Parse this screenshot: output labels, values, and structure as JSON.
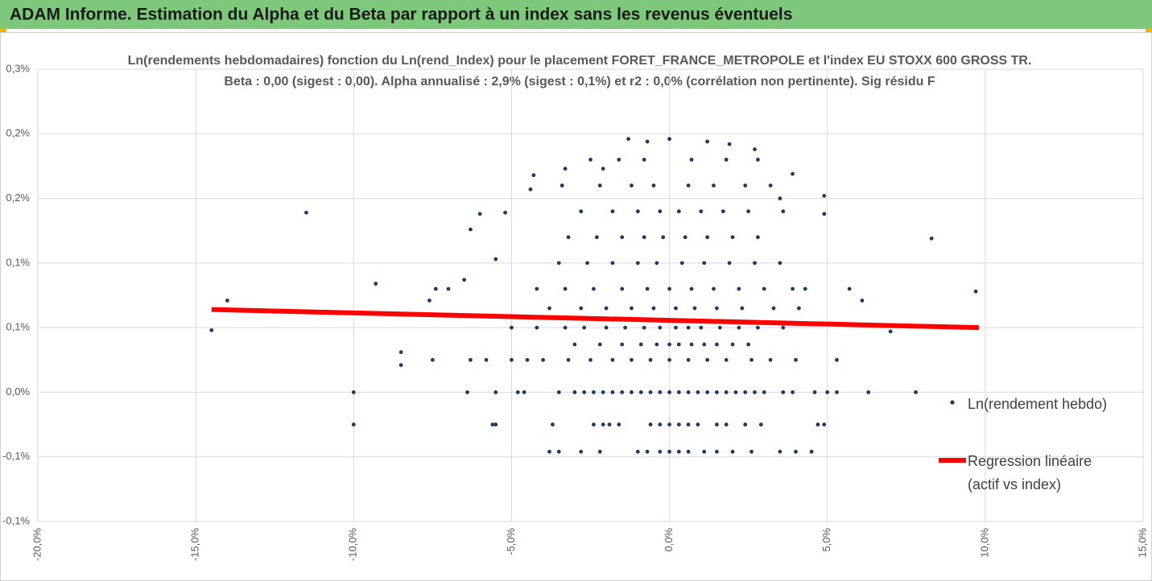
{
  "header": {
    "title": "ADAM Informe. Estimation du Alpha et du Beta par rapport à un index sans les revenus éventuels"
  },
  "chart_data": {
    "type": "scatter",
    "title": "Ln(rendements hebdomadaires) fonction du Ln(rend_Index) pour le placement FORET_FRANCE_METROPOLE et l'index EU STOXX 600 GROSS TR.",
    "subtitle": "Beta : 0,00 (sigest : 0,00). Alpha annualisé : 2,9% (sigest : 0,1%) et r2 : 0,0% (corrélation non pertinente). Sig résidu F",
    "xlim": [
      -20,
      15
    ],
    "xticks": [
      {
        "value": -20,
        "label": "-20,0%"
      },
      {
        "value": -15,
        "label": "-15,0%"
      },
      {
        "value": -10,
        "label": "-10,0%"
      },
      {
        "value": -5,
        "label": "-5,0%"
      },
      {
        "value": 0,
        "label": "0,0%"
      },
      {
        "value": 5,
        "label": "5,0%"
      },
      {
        "value": 10,
        "label": "10,0%"
      },
      {
        "value": 15,
        "label": "15,0%"
      }
    ],
    "ylim": [
      -0.1,
      0.25
    ],
    "yticks": [
      {
        "value": 0.25,
        "label": "0,3%"
      },
      {
        "value": 0.2,
        "label": "0,2%"
      },
      {
        "value": 0.15,
        "label": "0,2%"
      },
      {
        "value": 0.1,
        "label": "0,1%"
      },
      {
        "value": 0.05,
        "label": "0,1%"
      },
      {
        "value": 0,
        "label": "0,0%"
      },
      {
        "value": -0.05,
        "label": "-0,1%"
      },
      {
        "value": -0.1,
        "label": "-0,1%"
      }
    ],
    "grid": true,
    "legend": "right",
    "series": [
      {
        "name": "Ln(rendement hebdo)",
        "color": "#203864",
        "x": [
          -6.4,
          -5.5,
          -4.8,
          -4.6,
          -3.5,
          -3,
          -2.7,
          -2.4,
          -2.1,
          -1.8,
          -1.5,
          -1.2,
          -0.9,
          -0.6,
          -0.3,
          0,
          0.3,
          0.6,
          0.9,
          1.2,
          1.5,
          1.8,
          2.1,
          2.4,
          2.7,
          3,
          3.6,
          3.9,
          4.6,
          5,
          5.3,
          6.3,
          7.8,
          -5.6,
          -5.5,
          -3.7,
          -2.4,
          -2.1,
          -1.9,
          -1.6,
          -0.6,
          -0.3,
          0,
          0.3,
          0.6,
          0.9,
          1.5,
          1.8,
          2.4,
          2.9,
          4.7,
          4.9,
          -3.8,
          -3.5,
          -2.8,
          -2.2,
          -1.0,
          -0.7,
          -0.3,
          0,
          0.3,
          0.6,
          1.1,
          1.5,
          2.0,
          2.6,
          3.5,
          4.0,
          4.5,
          -7.5,
          -6.3,
          -5.8,
          -5.0,
          -4.5,
          -4.0,
          -3.2,
          -2.5,
          -1.8,
          -1.2,
          -0.6,
          0,
          0.6,
          1.2,
          1.8,
          2.6,
          3.2,
          4.0,
          5.3,
          -3,
          -2.2,
          -1.5,
          -0.9,
          -0.4,
          0,
          0.3,
          0.7,
          1.1,
          1.5,
          2,
          2.5,
          -5,
          -4.2,
          -3.3,
          -2.7,
          -2,
          -1.4,
          -0.8,
          -0.3,
          0.2,
          0.6,
          1,
          1.6,
          2.2,
          2.8,
          3.6,
          -3.8,
          -2.8,
          -2,
          -1.2,
          -0.5,
          0.2,
          0.8,
          1.5,
          2.3,
          3.3,
          4.1,
          -4.2,
          -3.3,
          -2.4,
          -1.5,
          -0.7,
          0,
          0.7,
          1.4,
          2.2,
          3,
          3.9,
          4.3,
          -3.5,
          -2.6,
          -1.8,
          -1,
          -0.4,
          0.4,
          1.1,
          1.9,
          2.7,
          3.5,
          -3.2,
          -2.3,
          -1.5,
          -0.8,
          -0.2,
          0.5,
          1.2,
          2,
          2.8,
          -2.8,
          -1.8,
          -1,
          -0.3,
          0.3,
          1,
          1.7,
          2.5,
          3.6,
          -3.4,
          -2.2,
          -1.2,
          -0.5,
          0.6,
          1.4,
          2.4,
          3.2,
          -2.5,
          -1.6,
          -0.8,
          0.7,
          1.8,
          2.8,
          -14.5,
          -14,
          -11.5,
          -10,
          -10,
          -9.3,
          -8.5,
          -8.5,
          -7.6,
          -7.4,
          -7,
          -6.5,
          -6.3,
          -6,
          -5.5,
          -5.2,
          8.3,
          9.7,
          7,
          6.1,
          5.7,
          4.9,
          4.9,
          3.9,
          3.5,
          -4.4,
          -4.3,
          -3.3,
          -2.1,
          -1.3,
          -0.7,
          0,
          1.2,
          1.9,
          2.7
        ],
        "values": [
          0,
          0,
          0,
          0,
          0,
          0,
          0,
          0,
          0,
          0,
          0,
          0,
          0,
          0,
          0,
          0,
          0,
          0,
          0,
          0,
          0,
          0,
          0,
          0,
          0,
          0,
          0,
          0,
          0,
          0,
          0,
          0,
          0,
          -0.025,
          -0.025,
          -0.025,
          -0.025,
          -0.025,
          -0.025,
          -0.025,
          -0.025,
          -0.025,
          -0.025,
          -0.025,
          -0.025,
          -0.025,
          -0.025,
          -0.025,
          -0.025,
          -0.025,
          -0.025,
          -0.025,
          -0.046,
          -0.046,
          -0.046,
          -0.046,
          -0.046,
          -0.046,
          -0.046,
          -0.046,
          -0.046,
          -0.046,
          -0.046,
          -0.046,
          -0.046,
          -0.046,
          -0.046,
          -0.046,
          -0.046,
          0.025,
          0.025,
          0.025,
          0.025,
          0.025,
          0.025,
          0.025,
          0.025,
          0.025,
          0.025,
          0.025,
          0.025,
          0.025,
          0.025,
          0.025,
          0.025,
          0.025,
          0.025,
          0.025,
          0.037,
          0.037,
          0.037,
          0.037,
          0.037,
          0.037,
          0.037,
          0.037,
          0.037,
          0.037,
          0.037,
          0.037,
          0.05,
          0.05,
          0.05,
          0.05,
          0.05,
          0.05,
          0.05,
          0.05,
          0.05,
          0.05,
          0.05,
          0.05,
          0.05,
          0.05,
          0.05,
          0.065,
          0.065,
          0.065,
          0.065,
          0.065,
          0.065,
          0.065,
          0.065,
          0.065,
          0.065,
          0.065,
          0.08,
          0.08,
          0.08,
          0.08,
          0.08,
          0.08,
          0.08,
          0.08,
          0.08,
          0.08,
          0.08,
          0.08,
          0.1,
          0.1,
          0.1,
          0.1,
          0.1,
          0.1,
          0.1,
          0.1,
          0.1,
          0.1,
          0.12,
          0.12,
          0.12,
          0.12,
          0.12,
          0.12,
          0.12,
          0.12,
          0.12,
          0.14,
          0.14,
          0.14,
          0.14,
          0.14,
          0.14,
          0.14,
          0.14,
          0.14,
          0.16,
          0.16,
          0.16,
          0.16,
          0.16,
          0.16,
          0.16,
          0.16,
          0.18,
          0.18,
          0.18,
          0.18,
          0.18,
          0.18,
          0.048,
          0.071,
          0.139,
          0,
          -0.025,
          0.084,
          0.031,
          0.021,
          0.071,
          0.08,
          0.08,
          0.087,
          0.126,
          0.138,
          0.103,
          0.139,
          0.119,
          0.078,
          0.047,
          0.071,
          0.08,
          0.152,
          0.138,
          0.169,
          0.15,
          0.157,
          0.168,
          0.173,
          0.173,
          0.196,
          0.194,
          0.196,
          0.194,
          0.192,
          0.188
        ]
      },
      {
        "name": "Regression linéaire (actif vs index)",
        "color": "#ff0000",
        "x": [
          -14.5,
          9.8
        ],
        "values": [
          0.064,
          0.05
        ]
      }
    ]
  }
}
